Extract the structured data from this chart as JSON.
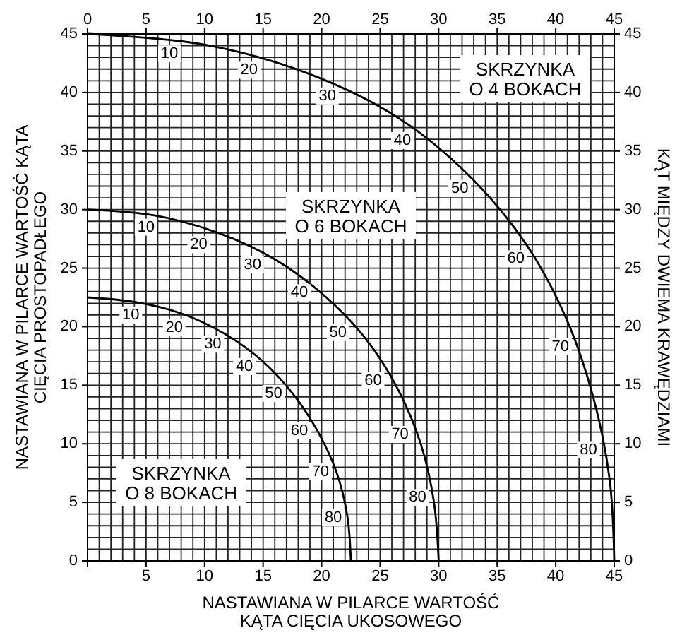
{
  "chart_data": {
    "type": "line",
    "xlabel": "NASTAWIANA W PILARCE WARTOŚĆ\nKĄTA CIĘCIA UKOSOWEGO",
    "ylabel": "NASTAWIANA W PILARCE WARTOŚĆ KĄTA\nCIĘCIA PROSTOPADŁEGO",
    "y2label": "KĄT MIĘDZY DWIEMA KRAWĘDZIAMI",
    "series": [
      {
        "color": "#000000",
        "x": [
          0,
          9.9,
          18.9,
          26.6,
          32.7,
          37.5,
          40.9,
          43.2,
          44.6,
          45
        ],
        "values": [
          45,
          44.1,
          41.6,
          37.8,
          32.8,
          27,
          20.7,
          14,
          7,
          0
        ]
      },
      {
        "color": "#000000",
        "x": [
          0,
          5.7,
          11.2,
          16.1,
          20.4,
          23.9,
          26.6,
          28.5,
          29.6,
          30
        ],
        "values": [
          30,
          29.5,
          28,
          25.7,
          22.5,
          18.8,
          14.5,
          9.9,
          5,
          0
        ]
      },
      {
        "color": "#000000",
        "x": [
          0,
          4.1,
          8.1,
          11.7,
          14.9,
          17.6,
          19.7,
          21.3,
          22.2,
          22.5
        ],
        "values": [
          22.5,
          22.1,
          21.1,
          19.4,
          17.1,
          14.2,
          11,
          7.5,
          3.8,
          0
        ]
      }
    ],
    "annotations": [
      "SKRZYNKA\nO 4 BOKACH",
      "SKRZYNKA\nO 6 BOKACH",
      "SKRZYNKA\nO 8 BOKACH",
      {
        "text": "10",
        "x": 7.0,
        "y": 43.3
      },
      {
        "text": "20",
        "x": 13.8,
        "y": 41.9
      },
      {
        "text": "30",
        "x": 20.5,
        "y": 39.7
      },
      {
        "text": "40",
        "x": 26.9,
        "y": 35.9
      },
      {
        "text": "50",
        "x": 31.8,
        "y": 31.8
      },
      {
        "text": "60",
        "x": 36.6,
        "y": 25.8
      },
      {
        "text": "70",
        "x": 40.4,
        "y": 18.3
      },
      {
        "text": "80",
        "x": 42.8,
        "y": 9.5
      },
      {
        "text": "10",
        "x": 5.0,
        "y": 28.5
      },
      {
        "text": "20",
        "x": 9.5,
        "y": 27.0
      },
      {
        "text": "30",
        "x": 14.1,
        "y": 25.3
      },
      {
        "text": "40",
        "x": 18.1,
        "y": 22.9
      },
      {
        "text": "50",
        "x": 21.4,
        "y": 19.5
      },
      {
        "text": "60",
        "x": 24.4,
        "y": 15.4
      },
      {
        "text": "70",
        "x": 26.7,
        "y": 10.8
      },
      {
        "text": "80",
        "x": 28.2,
        "y": 5.4
      },
      {
        "text": "10",
        "x": 3.7,
        "y": 21.0
      },
      {
        "text": "20",
        "x": 7.4,
        "y": 19.9
      },
      {
        "text": "30",
        "x": 10.7,
        "y": 18.5
      },
      {
        "text": "40",
        "x": 13.4,
        "y": 16.6
      },
      {
        "text": "50",
        "x": 15.9,
        "y": 14.3
      },
      {
        "text": "60",
        "x": 18.1,
        "y": 11.1
      },
      {
        "text": "70",
        "x": 19.9,
        "y": 7.6
      },
      {
        "text": "80",
        "x": 21.0,
        "y": 3.7
      }
    ],
    "xlim": [
      0,
      45
    ],
    "ylim": [
      0,
      45
    ],
    "x2lim": [
      0,
      45
    ],
    "y2lim": [
      0,
      45
    ],
    "xticks": [
      {
        "value": 0,
        "label": null
      },
      5,
      10,
      15,
      20,
      25,
      30,
      35,
      40,
      45
    ],
    "yticks": [
      0,
      5,
      10,
      15,
      20,
      25,
      30,
      35,
      40,
      45
    ],
    "x2ticks": [
      0,
      5,
      10,
      15,
      20,
      25,
      30,
      35,
      40,
      45
    ],
    "y2ticks": [
      0,
      5,
      10,
      15,
      20,
      25,
      30,
      35,
      40,
      45
    ],
    "grid": true,
    "marker": "none",
    "line_style": "solid"
  }
}
